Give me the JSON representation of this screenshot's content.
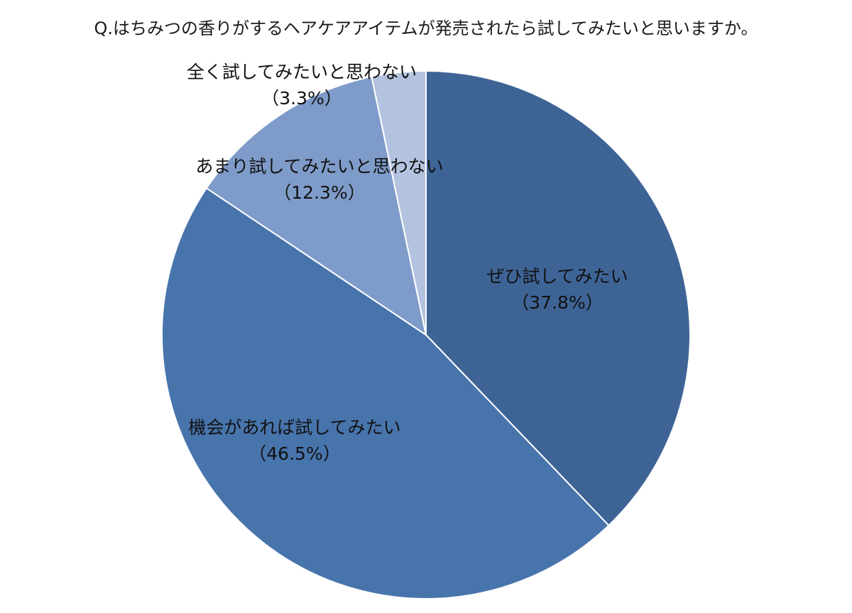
{
  "chart_data": {
    "type": "pie",
    "title": "Q.はちみつの香りがするヘアケアアイテムが発売されたら試してみたいと思いますか。",
    "slices": [
      {
        "name": "ぜひ試してみたい",
        "value": 37.8,
        "value_label": "（37.8%）",
        "color": "#3e6496"
      },
      {
        "name": "機会があれば試してみたい",
        "value": 46.5,
        "value_label": "（46.5%）",
        "color": "#4874ac"
      },
      {
        "name": "あまり試してみたいと思わない",
        "value": 12.3,
        "value_label": "（12.3%）",
        "color": "#7e9bc9"
      },
      {
        "name": "全く試してみたいと思わない",
        "value": 3.3,
        "value_label": "（3.3%）",
        "color": "#b3c3df"
      }
    ],
    "start_angle": "12 o'clock",
    "direction": "clockwise",
    "legend": "none"
  }
}
